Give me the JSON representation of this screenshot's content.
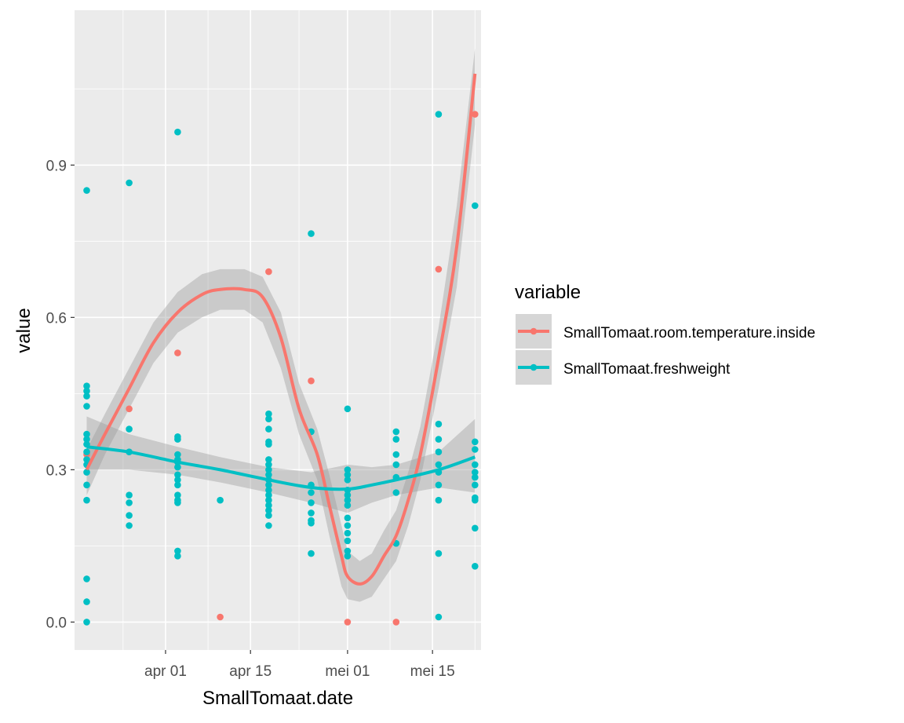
{
  "chart_data": {
    "type": "scatter",
    "xlabel": "SmallTomaat.date",
    "ylabel": "value",
    "x_axis": "date",
    "xlim": [
      "2019-03-17",
      "2019-05-23"
    ],
    "ylim": [
      -0.055,
      1.205
    ],
    "x_ticks": [
      {
        "date": "2019-04-01",
        "label": "apr 01"
      },
      {
        "date": "2019-04-15",
        "label": "apr 15"
      },
      {
        "date": "2019-05-01",
        "label": "mei 01"
      },
      {
        "date": "2019-05-15",
        "label": "mei 15"
      }
    ],
    "y_ticks": [
      {
        "value": 0.0,
        "label": "0.0"
      },
      {
        "value": 0.3,
        "label": "0.3"
      },
      {
        "value": 0.6,
        "label": "0.6"
      },
      {
        "value": 0.9,
        "label": "0.9"
      }
    ],
    "grid": true,
    "smooth": "loess with confidence band",
    "legend": {
      "title": "variable",
      "position": "right",
      "entries": [
        "SmallTomaat.room.temperature.inside",
        "SmallTomaat.freshweight"
      ]
    },
    "series": [
      {
        "name": "SmallTomaat.room.temperature.inside",
        "color": "#F8766D",
        "points": [
          [
            "2019-03-19",
            0.33
          ],
          [
            "2019-03-26",
            0.42
          ],
          [
            "2019-04-03",
            0.53
          ],
          [
            "2019-04-10",
            0.01
          ],
          [
            "2019-04-18",
            0.69
          ],
          [
            "2019-04-25",
            0.475
          ],
          [
            "2019-05-01",
            0.0
          ],
          [
            "2019-05-09",
            0.0
          ],
          [
            "2019-05-16",
            0.695
          ],
          [
            "2019-05-22",
            1.0
          ]
        ],
        "fit": [
          [
            "2019-03-19",
            0.3
          ],
          [
            "2019-03-22",
            0.37
          ],
          [
            "2019-03-26",
            0.46
          ],
          [
            "2019-03-30",
            0.55
          ],
          [
            "2019-04-03",
            0.61
          ],
          [
            "2019-04-07",
            0.645
          ],
          [
            "2019-04-10",
            0.655
          ],
          [
            "2019-04-14",
            0.655
          ],
          [
            "2019-04-17",
            0.64
          ],
          [
            "2019-04-20",
            0.56
          ],
          [
            "2019-04-23",
            0.42
          ],
          [
            "2019-04-26",
            0.33
          ],
          [
            "2019-04-28",
            0.23
          ],
          [
            "2019-04-30",
            0.13
          ],
          [
            "2019-05-01",
            0.09
          ],
          [
            "2019-05-03",
            0.075
          ],
          [
            "2019-05-05",
            0.09
          ],
          [
            "2019-05-07",
            0.13
          ],
          [
            "2019-05-09",
            0.17
          ],
          [
            "2019-05-11",
            0.24
          ],
          [
            "2019-05-13",
            0.33
          ],
          [
            "2019-05-16",
            0.52
          ],
          [
            "2019-05-19",
            0.74
          ],
          [
            "2019-05-22",
            1.08
          ]
        ],
        "band": [
          [
            "2019-03-19",
            0.25,
            0.34
          ],
          [
            "2019-03-22",
            0.33,
            0.41
          ],
          [
            "2019-03-26",
            0.42,
            0.5
          ],
          [
            "2019-03-30",
            0.51,
            0.59
          ],
          [
            "2019-04-03",
            0.57,
            0.65
          ],
          [
            "2019-04-07",
            0.6,
            0.685
          ],
          [
            "2019-04-10",
            0.615,
            0.695
          ],
          [
            "2019-04-14",
            0.615,
            0.695
          ],
          [
            "2019-04-17",
            0.59,
            0.68
          ],
          [
            "2019-04-20",
            0.5,
            0.61
          ],
          [
            "2019-04-23",
            0.37,
            0.47
          ],
          [
            "2019-04-26",
            0.28,
            0.38
          ],
          [
            "2019-04-28",
            0.17,
            0.29
          ],
          [
            "2019-04-30",
            0.07,
            0.19
          ],
          [
            "2019-05-01",
            0.045,
            0.14
          ],
          [
            "2019-05-03",
            0.04,
            0.12
          ],
          [
            "2019-05-05",
            0.05,
            0.135
          ],
          [
            "2019-05-07",
            0.085,
            0.18
          ],
          [
            "2019-05-09",
            0.12,
            0.22
          ],
          [
            "2019-05-11",
            0.19,
            0.295
          ],
          [
            "2019-05-13",
            0.28,
            0.385
          ],
          [
            "2019-05-16",
            0.46,
            0.58
          ],
          [
            "2019-05-19",
            0.66,
            0.82
          ],
          [
            "2019-05-22",
            0.98,
            1.13
          ]
        ]
      },
      {
        "name": "SmallTomaat.freshweight",
        "color": "#00BFC4",
        "points": [
          [
            "2019-03-19",
            0.85
          ],
          [
            "2019-03-19",
            0.465
          ],
          [
            "2019-03-19",
            0.455
          ],
          [
            "2019-03-19",
            0.445
          ],
          [
            "2019-03-19",
            0.425
          ],
          [
            "2019-03-19",
            0.37
          ],
          [
            "2019-03-19",
            0.36
          ],
          [
            "2019-03-19",
            0.35
          ],
          [
            "2019-03-19",
            0.335
          ],
          [
            "2019-03-19",
            0.32
          ],
          [
            "2019-03-19",
            0.31
          ],
          [
            "2019-03-19",
            0.295
          ],
          [
            "2019-03-19",
            0.27
          ],
          [
            "2019-03-19",
            0.24
          ],
          [
            "2019-03-19",
            0.085
          ],
          [
            "2019-03-19",
            0.04
          ],
          [
            "2019-03-19",
            0.0
          ],
          [
            "2019-03-26",
            0.865
          ],
          [
            "2019-03-26",
            0.38
          ],
          [
            "2019-03-26",
            0.335
          ],
          [
            "2019-03-26",
            0.25
          ],
          [
            "2019-03-26",
            0.235
          ],
          [
            "2019-03-26",
            0.21
          ],
          [
            "2019-03-26",
            0.19
          ],
          [
            "2019-04-03",
            0.965
          ],
          [
            "2019-04-03",
            0.365
          ],
          [
            "2019-04-03",
            0.36
          ],
          [
            "2019-04-03",
            0.33
          ],
          [
            "2019-04-03",
            0.32
          ],
          [
            "2019-04-03",
            0.315
          ],
          [
            "2019-04-03",
            0.305
          ],
          [
            "2019-04-03",
            0.29
          ],
          [
            "2019-04-03",
            0.28
          ],
          [
            "2019-04-03",
            0.27
          ],
          [
            "2019-04-03",
            0.25
          ],
          [
            "2019-04-03",
            0.24
          ],
          [
            "2019-04-03",
            0.235
          ],
          [
            "2019-04-03",
            0.14
          ],
          [
            "2019-04-03",
            0.13
          ],
          [
            "2019-04-10",
            0.24
          ],
          [
            "2019-04-18",
            0.41
          ],
          [
            "2019-04-18",
            0.4
          ],
          [
            "2019-04-18",
            0.38
          ],
          [
            "2019-04-18",
            0.355
          ],
          [
            "2019-04-18",
            0.35
          ],
          [
            "2019-04-18",
            0.32
          ],
          [
            "2019-04-18",
            0.31
          ],
          [
            "2019-04-18",
            0.3
          ],
          [
            "2019-04-18",
            0.29
          ],
          [
            "2019-04-18",
            0.28
          ],
          [
            "2019-04-18",
            0.27
          ],
          [
            "2019-04-18",
            0.26
          ],
          [
            "2019-04-18",
            0.25
          ],
          [
            "2019-04-18",
            0.24
          ],
          [
            "2019-04-18",
            0.23
          ],
          [
            "2019-04-18",
            0.22
          ],
          [
            "2019-04-18",
            0.21
          ],
          [
            "2019-04-18",
            0.19
          ],
          [
            "2019-04-25",
            0.765
          ],
          [
            "2019-04-25",
            0.375
          ],
          [
            "2019-04-25",
            0.27
          ],
          [
            "2019-04-25",
            0.255
          ],
          [
            "2019-04-25",
            0.235
          ],
          [
            "2019-04-25",
            0.215
          ],
          [
            "2019-04-25",
            0.2
          ],
          [
            "2019-04-25",
            0.195
          ],
          [
            "2019-04-25",
            0.135
          ],
          [
            "2019-05-01",
            0.42
          ],
          [
            "2019-05-01",
            0.3
          ],
          [
            "2019-05-01",
            0.29
          ],
          [
            "2019-05-01",
            0.28
          ],
          [
            "2019-05-01",
            0.26
          ],
          [
            "2019-05-01",
            0.25
          ],
          [
            "2019-05-01",
            0.24
          ],
          [
            "2019-05-01",
            0.23
          ],
          [
            "2019-05-01",
            0.205
          ],
          [
            "2019-05-01",
            0.19
          ],
          [
            "2019-05-01",
            0.175
          ],
          [
            "2019-05-01",
            0.16
          ],
          [
            "2019-05-01",
            0.14
          ],
          [
            "2019-05-01",
            0.13
          ],
          [
            "2019-05-09",
            0.375
          ],
          [
            "2019-05-09",
            0.36
          ],
          [
            "2019-05-09",
            0.33
          ],
          [
            "2019-05-09",
            0.31
          ],
          [
            "2019-05-09",
            0.285
          ],
          [
            "2019-05-09",
            0.255
          ],
          [
            "2019-05-09",
            0.155
          ],
          [
            "2019-05-16",
            1.0
          ],
          [
            "2019-05-16",
            0.39
          ],
          [
            "2019-05-16",
            0.36
          ],
          [
            "2019-05-16",
            0.335
          ],
          [
            "2019-05-16",
            0.31
          ],
          [
            "2019-05-16",
            0.295
          ],
          [
            "2019-05-16",
            0.27
          ],
          [
            "2019-05-16",
            0.24
          ],
          [
            "2019-05-16",
            0.135
          ],
          [
            "2019-05-16",
            0.01
          ],
          [
            "2019-05-22",
            0.82
          ],
          [
            "2019-05-22",
            0.355
          ],
          [
            "2019-05-22",
            0.34
          ],
          [
            "2019-05-22",
            0.31
          ],
          [
            "2019-05-22",
            0.295
          ],
          [
            "2019-05-22",
            0.285
          ],
          [
            "2019-05-22",
            0.27
          ],
          [
            "2019-05-22",
            0.245
          ],
          [
            "2019-05-22",
            0.24
          ],
          [
            "2019-05-22",
            0.185
          ],
          [
            "2019-05-22",
            0.11
          ]
        ],
        "fit": [
          [
            "2019-03-19",
            0.345
          ],
          [
            "2019-03-26",
            0.335
          ],
          [
            "2019-04-03",
            0.315
          ],
          [
            "2019-04-10",
            0.3
          ],
          [
            "2019-04-18",
            0.28
          ],
          [
            "2019-04-25",
            0.265
          ],
          [
            "2019-05-01",
            0.262
          ],
          [
            "2019-05-05",
            0.27
          ],
          [
            "2019-05-09",
            0.28
          ],
          [
            "2019-05-16",
            0.3
          ],
          [
            "2019-05-22",
            0.325
          ]
        ],
        "band": [
          [
            "2019-03-19",
            0.3,
            0.405
          ],
          [
            "2019-03-26",
            0.3,
            0.37
          ],
          [
            "2019-04-03",
            0.29,
            0.345
          ],
          [
            "2019-04-10",
            0.275,
            0.325
          ],
          [
            "2019-04-18",
            0.255,
            0.305
          ],
          [
            "2019-04-25",
            0.235,
            0.295
          ],
          [
            "2019-05-01",
            0.215,
            0.31
          ],
          [
            "2019-05-05",
            0.235,
            0.305
          ],
          [
            "2019-05-09",
            0.25,
            0.31
          ],
          [
            "2019-05-16",
            0.265,
            0.335
          ],
          [
            "2019-05-22",
            0.255,
            0.4
          ]
        ]
      }
    ]
  }
}
